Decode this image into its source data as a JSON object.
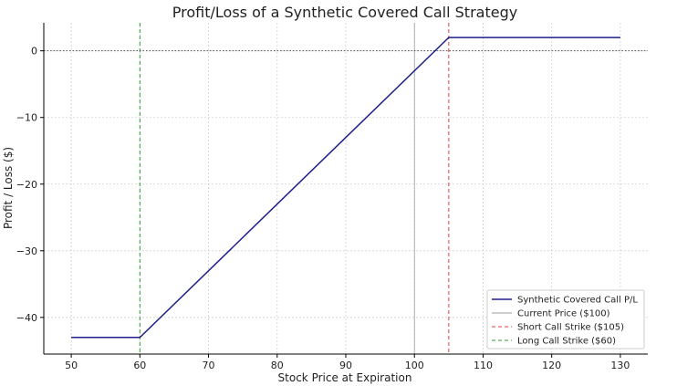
{
  "chart_data": {
    "type": "line",
    "title": "Profit/Loss of a Synthetic Covered Call Strategy",
    "xlabel": "Stock Price at Expiration",
    "ylabel": "Profit / Loss ($)",
    "xlim": [
      46,
      134
    ],
    "ylim": [
      -45.5,
      4.2
    ],
    "x_ticks": [
      50,
      60,
      70,
      80,
      90,
      100,
      110,
      120,
      130
    ],
    "y_ticks": [
      0,
      -10,
      -20,
      -30,
      -40
    ],
    "y_tick_labels": [
      "0",
      "−10",
      "−20",
      "−30",
      "−40"
    ],
    "grid": true,
    "legend_position": "bottom-right",
    "series": [
      {
        "name": "Synthetic Covered Call P/L",
        "color": "#1f1f8c",
        "style": "solid",
        "x": [
          50,
          60,
          105,
          130
        ],
        "y": [
          -43,
          -43,
          2,
          2
        ]
      }
    ],
    "reference_lines": [
      {
        "name": "Current Price ($100)",
        "orientation": "vertical",
        "value": 100,
        "color": "#9e9e9e",
        "style": "solid"
      },
      {
        "name": "Short Call Strike ($105)",
        "orientation": "vertical",
        "value": 105,
        "color": "#e04040",
        "style": "dashed"
      },
      {
        "name": "Long Call Strike ($60)",
        "orientation": "vertical",
        "value": 60,
        "color": "#2e9e2e",
        "style": "dashed"
      },
      {
        "name": "",
        "orientation": "horizontal",
        "value": 0,
        "color": "#555555",
        "style": "dotted"
      }
    ]
  }
}
